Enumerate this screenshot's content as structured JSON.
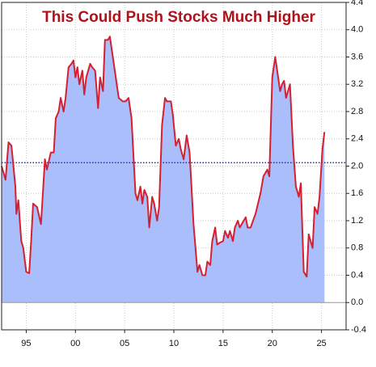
{
  "chart_data": {
    "type": "area",
    "title": "This Could Push Stocks Much Higher",
    "x": [
      1992.5,
      1992.9,
      1993.2,
      1993.5,
      1993.9,
      1994.0,
      1994.2,
      1994.5,
      1994.7,
      1995.0,
      1995.3,
      1995.5,
      1995.7,
      1996.1,
      1996.5,
      1996.9,
      1997.1,
      1997.5,
      1997.8,
      1998.0,
      1998.3,
      1998.5,
      1998.8,
      1999.0,
      1999.3,
      1999.6,
      1999.8,
      2000.0,
      2000.2,
      2000.4,
      2000.7,
      2000.9,
      2001.1,
      2001.5,
      2001.7,
      2002.0,
      2002.3,
      2002.5,
      2002.8,
      2003.0,
      2003.3,
      2003.5,
      2003.8,
      2004.1,
      2004.4,
      2004.8,
      2005.1,
      2005.4,
      2005.7,
      2006.1,
      2006.3,
      2006.6,
      2006.8,
      2007.0,
      2007.3,
      2007.5,
      2007.8,
      2008.0,
      2008.3,
      2008.5,
      2008.8,
      2009.1,
      2009.3,
      2009.7,
      2009.9,
      2010.2,
      2010.5,
      2010.7,
      2011.0,
      2011.3,
      2011.6,
      2012.0,
      2012.4,
      2012.6,
      2012.9,
      2013.2,
      2013.4,
      2013.7,
      2013.9,
      2014.2,
      2014.4,
      2014.7,
      2015.0,
      2015.2,
      2015.5,
      2015.7,
      2016.0,
      2016.2,
      2016.5,
      2016.7,
      2017.3,
      2017.5,
      2017.8,
      2018.3,
      2018.8,
      2019.1,
      2019.5,
      2019.7,
      2020.0,
      2020.3,
      2020.8,
      2021.0,
      2021.2,
      2021.4,
      2021.8,
      2022.1,
      2022.4,
      2022.7,
      2022.9,
      2023.2,
      2023.5,
      2023.7,
      2024.1,
      2024.3,
      2024.6,
      2024.8,
      2025.1,
      2025.3
    ],
    "series": [
      {
        "color": "#d42030",
        "fill": "#a9befa",
        "values": [
          2.0,
          1.8,
          2.35,
          2.3,
          1.7,
          1.3,
          1.5,
          0.9,
          0.8,
          0.45,
          0.43,
          0.9,
          1.45,
          1.4,
          1.15,
          2.1,
          1.95,
          2.2,
          2.2,
          2.7,
          2.8,
          3.0,
          2.8,
          3.0,
          3.45,
          3.5,
          3.55,
          3.3,
          3.45,
          3.2,
          3.4,
          3.05,
          3.3,
          3.5,
          3.45,
          3.4,
          2.85,
          3.3,
          3.1,
          3.85,
          3.85,
          3.9,
          3.6,
          3.3,
          3.0,
          2.95,
          2.95,
          3.0,
          2.7,
          1.6,
          1.5,
          1.7,
          1.45,
          1.65,
          1.55,
          1.1,
          1.55,
          1.45,
          1.2,
          1.4,
          2.6,
          3.0,
          2.95,
          2.95,
          2.75,
          2.3,
          2.4,
          2.25,
          2.1,
          2.45,
          2.2,
          1.15,
          0.45,
          0.55,
          0.4,
          0.4,
          0.6,
          0.55,
          0.9,
          1.1,
          0.85,
          0.88,
          0.9,
          1.05,
          0.95,
          1.05,
          0.9,
          1.1,
          1.2,
          1.1,
          1.25,
          1.1,
          1.1,
          1.3,
          1.6,
          1.85,
          1.95,
          1.85,
          3.3,
          3.6,
          3.1,
          3.2,
          3.25,
          3.0,
          3.2,
          2.3,
          1.7,
          1.55,
          1.75,
          0.45,
          0.38,
          1.0,
          0.8,
          1.4,
          1.3,
          1.55,
          2.25,
          2.5
        ]
      }
    ],
    "xlim": [
      1992.5,
      2027.5
    ],
    "xticks": [
      {
        "value": 1995,
        "label": "95"
      },
      {
        "value": 2000,
        "label": "00"
      },
      {
        "value": 2005,
        "label": "05"
      },
      {
        "value": 2010,
        "label": "10"
      },
      {
        "value": 2015,
        "label": "15"
      },
      {
        "value": 2020,
        "label": "20"
      },
      {
        "value": 2025,
        "label": "25"
      }
    ],
    "ylim": [
      -0.4,
      4.4
    ],
    "yticks": [
      -0.4,
      {
        "value": 0,
        "label": "0.0"
      },
      0.4,
      0.8,
      1.2,
      1.6,
      {
        "value": 2,
        "label": "2.0"
      },
      2.4,
      2.8,
      3.2,
      3.6,
      {
        "value": 4,
        "label": "4.0"
      },
      4.4
    ],
    "grid": true,
    "reference_line": {
      "value": 2.05,
      "color": "#1a2fd6"
    },
    "zero_line": {
      "value": 0,
      "color": "#999999"
    }
  }
}
